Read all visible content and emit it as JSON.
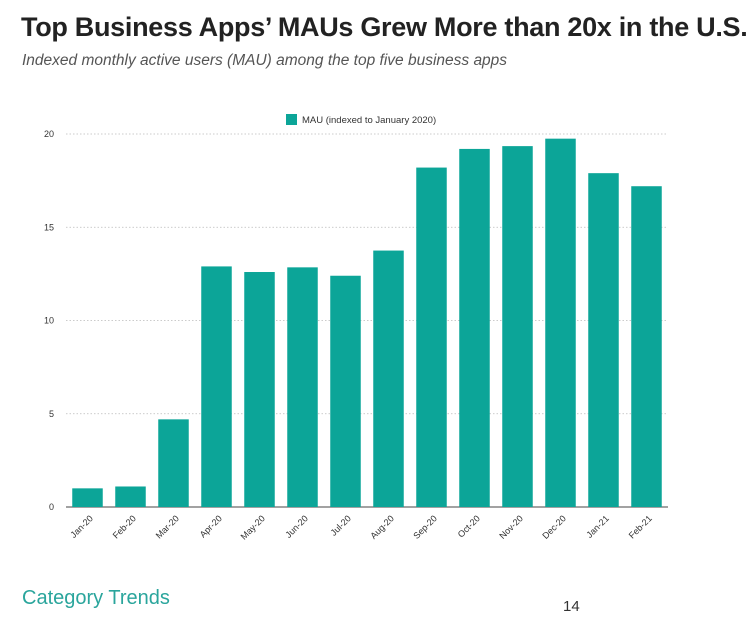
{
  "header": {
    "title": "Top Business Apps’ MAUs Grew More than 20x in the U.S.",
    "subtitle": "Indexed monthly active users (MAU) among the top five business apps"
  },
  "footer": {
    "label": "Category Trends",
    "page_number": "14"
  },
  "chart_data": {
    "type": "bar",
    "categories": [
      "Jan-20",
      "Feb-20",
      "Mar-20",
      "Apr-20",
      "May-20",
      "Jun-20",
      "Jul-20",
      "Aug-20",
      "Sep-20",
      "Oct-20",
      "Nov-20",
      "Dec-20",
      "Jan-21",
      "Feb-21"
    ],
    "series": [
      {
        "name": "MAU (indexed to January 2020)",
        "values": [
          1.0,
          1.1,
          4.7,
          12.9,
          12.6,
          12.85,
          12.4,
          13.75,
          18.2,
          19.2,
          19.35,
          19.75,
          17.9,
          17.2
        ],
        "color": "#0ca598"
      }
    ],
    "ylim": [
      0,
      20
    ],
    "yticks": [
      0,
      5,
      10,
      15,
      20
    ],
    "grid": true,
    "legend": "top-center",
    "xlabel": "",
    "ylabel": ""
  }
}
